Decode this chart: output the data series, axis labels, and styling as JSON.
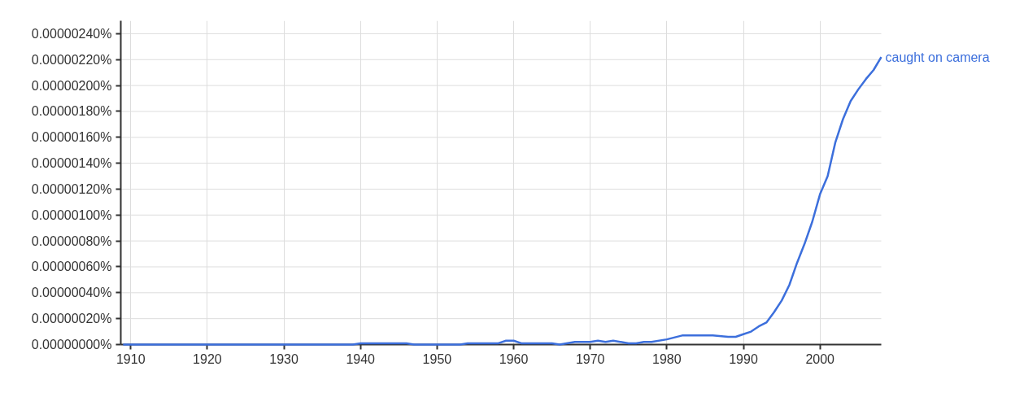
{
  "chart_data": {
    "type": "line",
    "x": [
      1909,
      1939,
      1940,
      1946,
      1947,
      1953,
      1954,
      1958,
      1959,
      1960,
      1961,
      1965,
      1966,
      1968,
      1970,
      1971,
      1972,
      1973,
      1975,
      1976,
      1977,
      1978,
      1980,
      1982,
      1983,
      1985,
      1986,
      1988,
      1989,
      1990,
      1991,
      1992,
      1993,
      1994,
      1995,
      1996,
      1997,
      1998,
      1999,
      2000,
      2001,
      2002,
      2003,
      2004,
      2005,
      2006,
      2007,
      2008
    ],
    "series": [
      {
        "name": "caught on camera",
        "color": "#3c6fdc",
        "values": [
          0,
          0,
          1e-08,
          1e-08,
          0,
          0,
          1e-08,
          1e-08,
          3e-08,
          3e-08,
          1e-08,
          1e-08,
          0,
          2e-08,
          2e-08,
          3e-08,
          2e-08,
          3e-08,
          1e-08,
          1e-08,
          2e-08,
          2e-08,
          4e-08,
          7e-08,
          7e-08,
          7e-08,
          7e-08,
          6e-08,
          6e-08,
          8e-08,
          1e-07,
          1.4e-07,
          1.7e-07,
          2.5e-07,
          3.4e-07,
          4.6e-07,
          6.3e-07,
          7.8e-07,
          9.5e-07,
          1.16e-06,
          1.3e-06,
          1.56e-06,
          1.74e-06,
          1.88e-06,
          1.97e-06,
          2.05e-06,
          2.12e-06,
          2.22e-06
        ]
      }
    ],
    "xlim": [
      1908.7,
      2008
    ],
    "ylim": [
      0,
      2.5e-06
    ],
    "xticks": [
      1910,
      1920,
      1930,
      1940,
      1950,
      1960,
      1970,
      1980,
      1990,
      2000
    ],
    "yticks": [
      {
        "value": 0,
        "label": "0.00000000%"
      },
      {
        "value": 2e-07,
        "label": "0.00000020%"
      },
      {
        "value": 4e-07,
        "label": "0.00000040%"
      },
      {
        "value": 6e-07,
        "label": "0.00000060%"
      },
      {
        "value": 8e-07,
        "label": "0.00000080%"
      },
      {
        "value": 1e-06,
        "label": "0.00000100%"
      },
      {
        "value": 1.2e-06,
        "label": "0.00000120%"
      },
      {
        "value": 1.4e-06,
        "label": "0.00000140%"
      },
      {
        "value": 1.6e-06,
        "label": "0.00000160%"
      },
      {
        "value": 1.8e-06,
        "label": "0.00000180%"
      },
      {
        "value": 2e-06,
        "label": "0.00000200%"
      },
      {
        "value": 2.2e-06,
        "label": "0.00000220%"
      },
      {
        "value": 2.4e-06,
        "label": "0.00000240%"
      }
    ],
    "grid": true,
    "line_style": "solid"
  }
}
